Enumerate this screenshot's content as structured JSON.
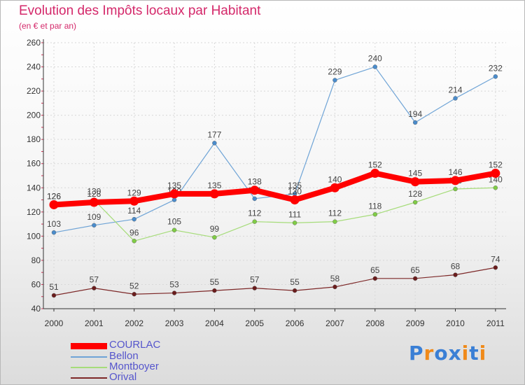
{
  "header": {
    "title": "Evolution des Impôts locaux par Habitant",
    "subtitle": "(en € et par an)"
  },
  "colors": {
    "title": "#d4286a",
    "axis": "#333333",
    "grid": "#d8d8d8",
    "legend_text": "#5555cc",
    "courlac": "#ff0000",
    "bellon": "#6fa4d6",
    "montboyer": "#a6dc7a",
    "orival": "#7d2828"
  },
  "chart_data": {
    "type": "line",
    "title": "Evolution des Impôts locaux par Habitant",
    "subtitle": "(en € et par an)",
    "xlabel": "",
    "ylabel": "",
    "ylim": [
      40,
      260
    ],
    "yticks": [
      "40",
      "60",
      "80",
      "100",
      "120",
      "140",
      "160",
      "180",
      "200",
      "220",
      "240",
      "260"
    ],
    "x": [
      "2000",
      "2001",
      "2002",
      "2003",
      "2004",
      "2005",
      "2006",
      "2007",
      "2008",
      "2009",
      "2010",
      "2011"
    ],
    "grid": true,
    "series": [
      {
        "key": "bellon",
        "name": "Bellon",
        "color": "#6fa4d6",
        "marker": "#4a8ccc",
        "width": 1.2,
        "values": [
          103,
          109,
          114,
          130,
          177,
          131,
          135,
          229,
          240,
          194,
          214,
          232
        ],
        "labels": [
          "103",
          "109",
          "114",
          "130",
          "177",
          "131",
          "135",
          "229",
          "240",
          "194",
          "214",
          "232"
        ]
      },
      {
        "key": "montboyer",
        "name": "Montboyer",
        "color": "#a6dc7a",
        "marker": "#80cc46",
        "width": 1.2,
        "values": [
          126,
          130,
          96,
          105,
          99,
          112,
          111,
          112,
          118,
          128,
          139,
          140
        ],
        "labels": [
          "126",
          "130",
          "96",
          "105",
          "99",
          "112",
          "111",
          "112",
          "118",
          "128",
          "139",
          "140"
        ]
      },
      {
        "key": "orival",
        "name": "Orival",
        "color": "#7d2828",
        "marker": "#6a1c1c",
        "width": 1.2,
        "values": [
          51,
          57,
          52,
          53,
          55,
          57,
          55,
          58,
          65,
          65,
          68,
          74
        ],
        "labels": [
          "51",
          "57",
          "52",
          "53",
          "55",
          "57",
          "55",
          "58",
          "65",
          "65",
          "68",
          "74"
        ]
      },
      {
        "key": "courlac",
        "name": "COURLAC",
        "color": "#ff0000",
        "marker": "#ff0000",
        "width": 8,
        "values": [
          126,
          128,
          129,
          135,
          135,
          138,
          130,
          140,
          152,
          145,
          146,
          152
        ],
        "labels": [
          "126",
          "128",
          "129",
          "135",
          "135",
          "138",
          "130",
          "140",
          "152",
          "145",
          "146",
          "152"
        ]
      }
    ]
  },
  "legend": [
    {
      "key": "courlac",
      "label": "COURLAC"
    },
    {
      "key": "bellon",
      "label": "Bellon"
    },
    {
      "key": "montboyer",
      "label": "Montboyer"
    },
    {
      "key": "orival",
      "label": "Orival"
    }
  ],
  "logo": {
    "text": "Proxiti",
    "letter_colors": [
      "#3a7fd5",
      "#f08a1a",
      "#3a7fd5",
      "#3a7fd5",
      "#f08a1a",
      "#3a7fd5",
      "#f08a1a"
    ]
  }
}
